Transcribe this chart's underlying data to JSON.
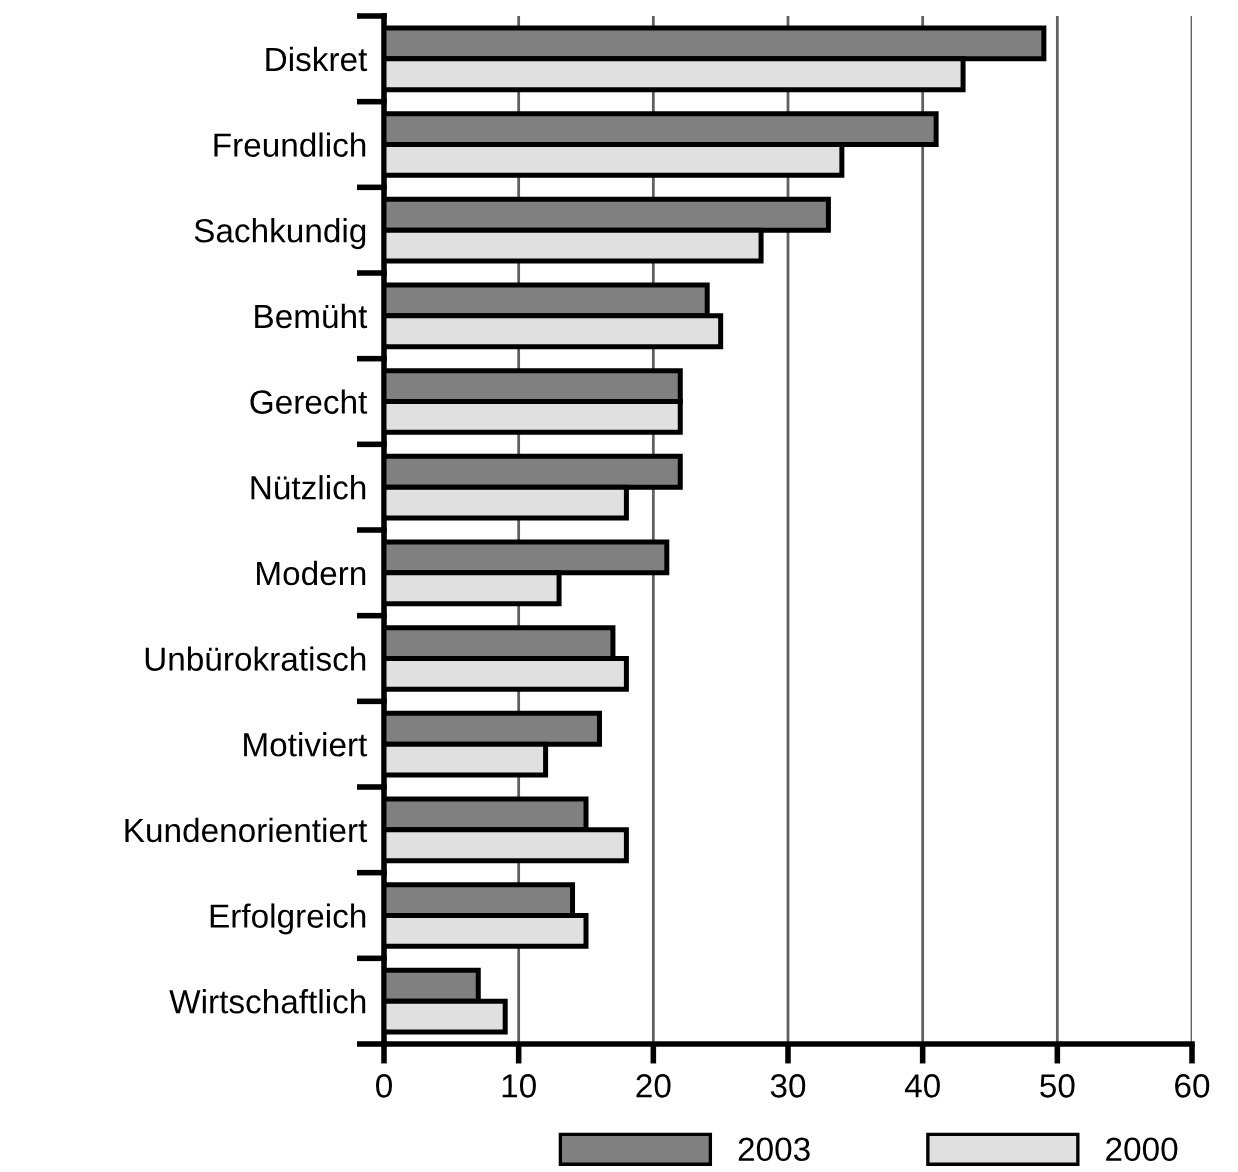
{
  "chart_data": {
    "type": "bar",
    "orientation": "horizontal",
    "categories": [
      "Diskret",
      "Freundlich",
      "Sachkundig",
      "Bemüht",
      "Gerecht",
      "Nützlich",
      "Modern",
      "Unbürokratisch",
      "Motiviert",
      "Kundenorientiert",
      "Erfolgreich",
      "Wirtschaftlich"
    ],
    "series": [
      {
        "name": "2003",
        "color": "#808080",
        "values": [
          49,
          41,
          33,
          24,
          22,
          22,
          21,
          17,
          16,
          15,
          14,
          7
        ]
      },
      {
        "name": "2000",
        "color": "#e0e0e0",
        "values": [
          43,
          34,
          28,
          25,
          22,
          18,
          13,
          18,
          12,
          18,
          15,
          9
        ]
      }
    ],
    "xlim": [
      0,
      60
    ],
    "xticks": [
      0,
      10,
      20,
      30,
      40,
      50,
      60
    ],
    "grid": "x",
    "legend": "bottom"
  }
}
